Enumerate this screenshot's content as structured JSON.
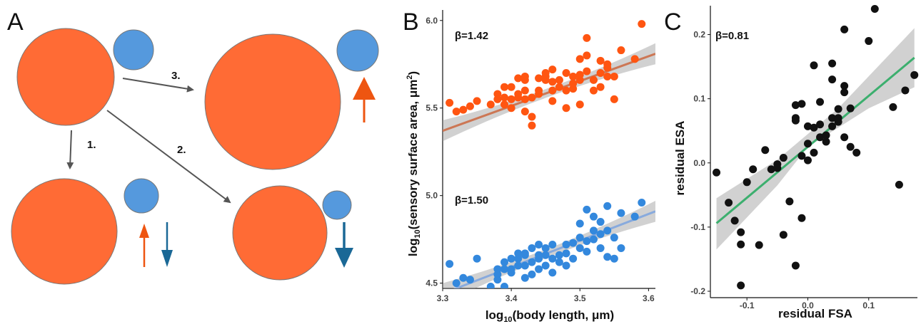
{
  "panel_letters": {
    "a": "A",
    "b": "B",
    "c": "C"
  },
  "diagram": {
    "step_labels": {
      "one": "1.",
      "two": "2.",
      "three": "3."
    },
    "colors": {
      "large_circle": "#FF6B35",
      "small_circle": "#5599DD",
      "orange_arrow": "#EE5511",
      "blue_arrow": "#1A6896",
      "path_arrow": "#555555"
    }
  },
  "chart_data": [
    {
      "type": "scatter",
      "panel": "B",
      "xlabel_main": "log",
      "xlabel_sub": "10",
      "xlabel_rest": "(body length, ",
      "xlabel_unit": "μm)",
      "ylabel_main": "log",
      "ylabel_sub": "10",
      "ylabel_rest": "(sensory surface area, ",
      "ylabel_unit": "μm",
      "ylabel_sup": "2",
      "ylabel_close": ")",
      "xlim": [
        3.3,
        3.61
      ],
      "ylim": [
        4.47,
        6.06
      ],
      "xticks": [
        "3.3",
        "3.4",
        "3.5",
        "3.6"
      ],
      "yticks": [
        "4.5",
        "5.0",
        "5.5",
        "6.0"
      ],
      "grid": false,
      "series": [
        {
          "color": "#FF5511",
          "line_color": "#CC7755",
          "annotation": "β=1.42",
          "fit": {
            "x": [
              3.3,
              3.61
            ],
            "y": [
              5.37,
              5.81
            ]
          },
          "band_halfwidth_ends": 0.06,
          "band_halfwidth_mid": 0.025,
          "points": [
            [
              3.31,
              5.53
            ],
            [
              3.32,
              5.48
            ],
            [
              3.33,
              5.49
            ],
            [
              3.34,
              5.51
            ],
            [
              3.35,
              5.54
            ],
            [
              3.37,
              5.52
            ],
            [
              3.38,
              5.58
            ],
            [
              3.38,
              5.55
            ],
            [
              3.39,
              5.56
            ],
            [
              3.39,
              5.52
            ],
            [
              3.39,
              5.62
            ],
            [
              3.4,
              5.55
            ],
            [
              3.4,
              5.5
            ],
            [
              3.4,
              5.62
            ],
            [
              3.41,
              5.56
            ],
            [
              3.41,
              5.58
            ],
            [
              3.41,
              5.67
            ],
            [
              3.42,
              5.55
            ],
            [
              3.42,
              5.6
            ],
            [
              3.42,
              5.66
            ],
            [
              3.42,
              5.68
            ],
            [
              3.42,
              5.48
            ],
            [
              3.43,
              5.45
            ],
            [
              3.43,
              5.4
            ],
            [
              3.43,
              5.56
            ],
            [
              3.44,
              5.6
            ],
            [
              3.44,
              5.67
            ],
            [
              3.44,
              5.58
            ],
            [
              3.45,
              5.66
            ],
            [
              3.45,
              5.68
            ],
            [
              3.45,
              5.7
            ],
            [
              3.46,
              5.6
            ],
            [
              3.46,
              5.65
            ],
            [
              3.46,
              5.54
            ],
            [
              3.46,
              5.72
            ],
            [
              3.47,
              5.62
            ],
            [
              3.47,
              5.66
            ],
            [
              3.48,
              5.5
            ],
            [
              3.48,
              5.6
            ],
            [
              3.48,
              5.7
            ],
            [
              3.49,
              5.64
            ],
            [
              3.49,
              5.68
            ],
            [
              3.49,
              5.61
            ],
            [
              3.5,
              5.66
            ],
            [
              3.5,
              5.69
            ],
            [
              3.5,
              5.52
            ],
            [
              3.5,
              5.78
            ],
            [
              3.51,
              5.71
            ],
            [
              3.51,
              5.8
            ],
            [
              3.51,
              5.9
            ],
            [
              3.52,
              5.6
            ],
            [
              3.52,
              5.66
            ],
            [
              3.53,
              5.62
            ],
            [
              3.53,
              5.7
            ],
            [
              3.53,
              5.77
            ],
            [
              3.54,
              5.68
            ],
            [
              3.54,
              5.73
            ],
            [
              3.54,
              5.75
            ],
            [
              3.55,
              5.55
            ],
            [
              3.55,
              5.68
            ],
            [
              3.56,
              5.83
            ],
            [
              3.58,
              5.78
            ],
            [
              3.59,
              5.98
            ]
          ]
        },
        {
          "color": "#3388DD",
          "line_color": "#88AADD",
          "annotation": "β=1.50",
          "fit": {
            "x": [
              3.3,
              3.61
            ],
            "y": [
              4.44,
              4.91
            ]
          },
          "band_halfwidth_ends": 0.06,
          "band_halfwidth_mid": 0.025,
          "points": [
            [
              3.31,
              4.61
            ],
            [
              3.32,
              4.5
            ],
            [
              3.33,
              4.53
            ],
            [
              3.34,
              4.52
            ],
            [
              3.35,
              4.64
            ],
            [
              3.37,
              4.48
            ],
            [
              3.38,
              4.55
            ],
            [
              3.38,
              4.58
            ],
            [
              3.38,
              4.52
            ],
            [
              3.39,
              4.58
            ],
            [
              3.39,
              4.62
            ],
            [
              3.39,
              4.48
            ],
            [
              3.4,
              4.58
            ],
            [
              3.4,
              4.64
            ],
            [
              3.4,
              4.56
            ],
            [
              3.41,
              4.6
            ],
            [
              3.41,
              4.64
            ],
            [
              3.41,
              4.67
            ],
            [
              3.42,
              4.6
            ],
            [
              3.42,
              4.66
            ],
            [
              3.42,
              4.53
            ],
            [
              3.42,
              4.67
            ],
            [
              3.43,
              4.62
            ],
            [
              3.43,
              4.7
            ],
            [
              3.43,
              4.55
            ],
            [
              3.44,
              4.64
            ],
            [
              3.44,
              4.66
            ],
            [
              3.44,
              4.58
            ],
            [
              3.44,
              4.72
            ],
            [
              3.45,
              4.66
            ],
            [
              3.45,
              4.6
            ],
            [
              3.45,
              4.7
            ],
            [
              3.46,
              4.64
            ],
            [
              3.46,
              4.56
            ],
            [
              3.46,
              4.72
            ],
            [
              3.47,
              4.62
            ],
            [
              3.47,
              4.66
            ],
            [
              3.48,
              4.6
            ],
            [
              3.48,
              4.67
            ],
            [
              3.48,
              4.72
            ],
            [
              3.49,
              4.64
            ],
            [
              3.49,
              4.73
            ],
            [
              3.5,
              4.7
            ],
            [
              3.5,
              4.76
            ],
            [
              3.5,
              4.84
            ],
            [
              3.51,
              4.68
            ],
            [
              3.51,
              4.74
            ],
            [
              3.51,
              4.92
            ],
            [
              3.52,
              4.75
            ],
            [
              3.52,
              4.8
            ],
            [
              3.52,
              4.88
            ],
            [
              3.53,
              4.7
            ],
            [
              3.53,
              4.78
            ],
            [
              3.53,
              4.85
            ],
            [
              3.54,
              4.65
            ],
            [
              3.54,
              4.8
            ],
            [
              3.54,
              4.94
            ],
            [
              3.55,
              4.64
            ],
            [
              3.55,
              4.76
            ],
            [
              3.56,
              4.7
            ],
            [
              3.56,
              4.9
            ],
            [
              3.58,
              4.88
            ],
            [
              3.59,
              4.96
            ]
          ]
        }
      ]
    },
    {
      "type": "scatter",
      "panel": "C",
      "xlabel": "residual FSA",
      "ylabel": "residual ESA",
      "xlim": [
        -0.16,
        0.18
      ],
      "ylim": [
        -0.21,
        0.245
      ],
      "xticks": [
        "-0.1",
        "0.0",
        "0.1"
      ],
      "yticks": [
        "-0.2",
        "-0.1",
        "0.0",
        "0.1",
        "0.2"
      ],
      "grid": false,
      "annotation": "β=0.81",
      "point_color": "#111111",
      "line_color": "#3CAF6E",
      "fit": {
        "x": [
          -0.15,
          0.175
        ],
        "y": [
          -0.094,
          0.164
        ]
      },
      "band": {
        "upper": [
          [
            -0.15,
            -0.055
          ],
          [
            -0.1,
            -0.025
          ],
          [
            -0.05,
            0.005
          ],
          [
            0.0,
            0.045
          ],
          [
            0.05,
            0.085
          ],
          [
            0.1,
            0.135
          ],
          [
            0.175,
            0.21
          ]
        ],
        "lower": [
          [
            -0.15,
            -0.135
          ],
          [
            -0.1,
            -0.085
          ],
          [
            -0.05,
            -0.035
          ],
          [
            0.0,
            0.025
          ],
          [
            0.05,
            0.055
          ],
          [
            0.1,
            0.085
          ],
          [
            0.175,
            0.118
          ]
        ]
      },
      "points": [
        [
          -0.15,
          -0.015
        ],
        [
          -0.13,
          -0.062
        ],
        [
          -0.12,
          -0.09
        ],
        [
          -0.11,
          -0.108
        ],
        [
          -0.11,
          -0.127
        ],
        [
          -0.11,
          -0.191
        ],
        [
          -0.1,
          -0.03
        ],
        [
          -0.09,
          -0.01
        ],
        [
          -0.08,
          -0.128
        ],
        [
          -0.07,
          0.02
        ],
        [
          -0.06,
          -0.01
        ],
        [
          -0.05,
          -0.002
        ],
        [
          -0.05,
          -0.008
        ],
        [
          -0.04,
          -0.112
        ],
        [
          -0.04,
          0.008
        ],
        [
          -0.03,
          -0.06
        ],
        [
          -0.02,
          -0.16
        ],
        [
          -0.02,
          0.09
        ],
        [
          -0.02,
          0.07
        ],
        [
          -0.02,
          0.066
        ],
        [
          -0.01,
          0.092
        ],
        [
          -0.01,
          -0.086
        ],
        [
          -0.01,
          0.011
        ],
        [
          0.0,
          0.057
        ],
        [
          0.0,
          0.03
        ],
        [
          0.0,
          0.004
        ],
        [
          0.01,
          0.152
        ],
        [
          0.01,
          0.055
        ],
        [
          0.01,
          0.016
        ],
        [
          0.02,
          0.04
        ],
        [
          0.02,
          0.06
        ],
        [
          0.02,
          0.095
        ],
        [
          0.03,
          0.033
        ],
        [
          0.03,
          0.043
        ],
        [
          0.04,
          0.057
        ],
        [
          0.04,
          0.07
        ],
        [
          0.04,
          0.13
        ],
        [
          0.04,
          0.155
        ],
        [
          0.05,
          0.064
        ],
        [
          0.05,
          0.084
        ],
        [
          0.05,
          0.07
        ],
        [
          0.06,
          0.12
        ],
        [
          0.06,
          0.11
        ],
        [
          0.06,
          0.208
        ],
        [
          0.06,
          0.04
        ],
        [
          0.07,
          0.025
        ],
        [
          0.07,
          0.085
        ],
        [
          0.08,
          0.016
        ],
        [
          0.1,
          0.19
        ],
        [
          0.11,
          0.24
        ],
        [
          0.14,
          0.087
        ],
        [
          0.15,
          -0.034
        ],
        [
          0.16,
          0.113
        ],
        [
          0.175,
          0.137
        ]
      ]
    }
  ]
}
